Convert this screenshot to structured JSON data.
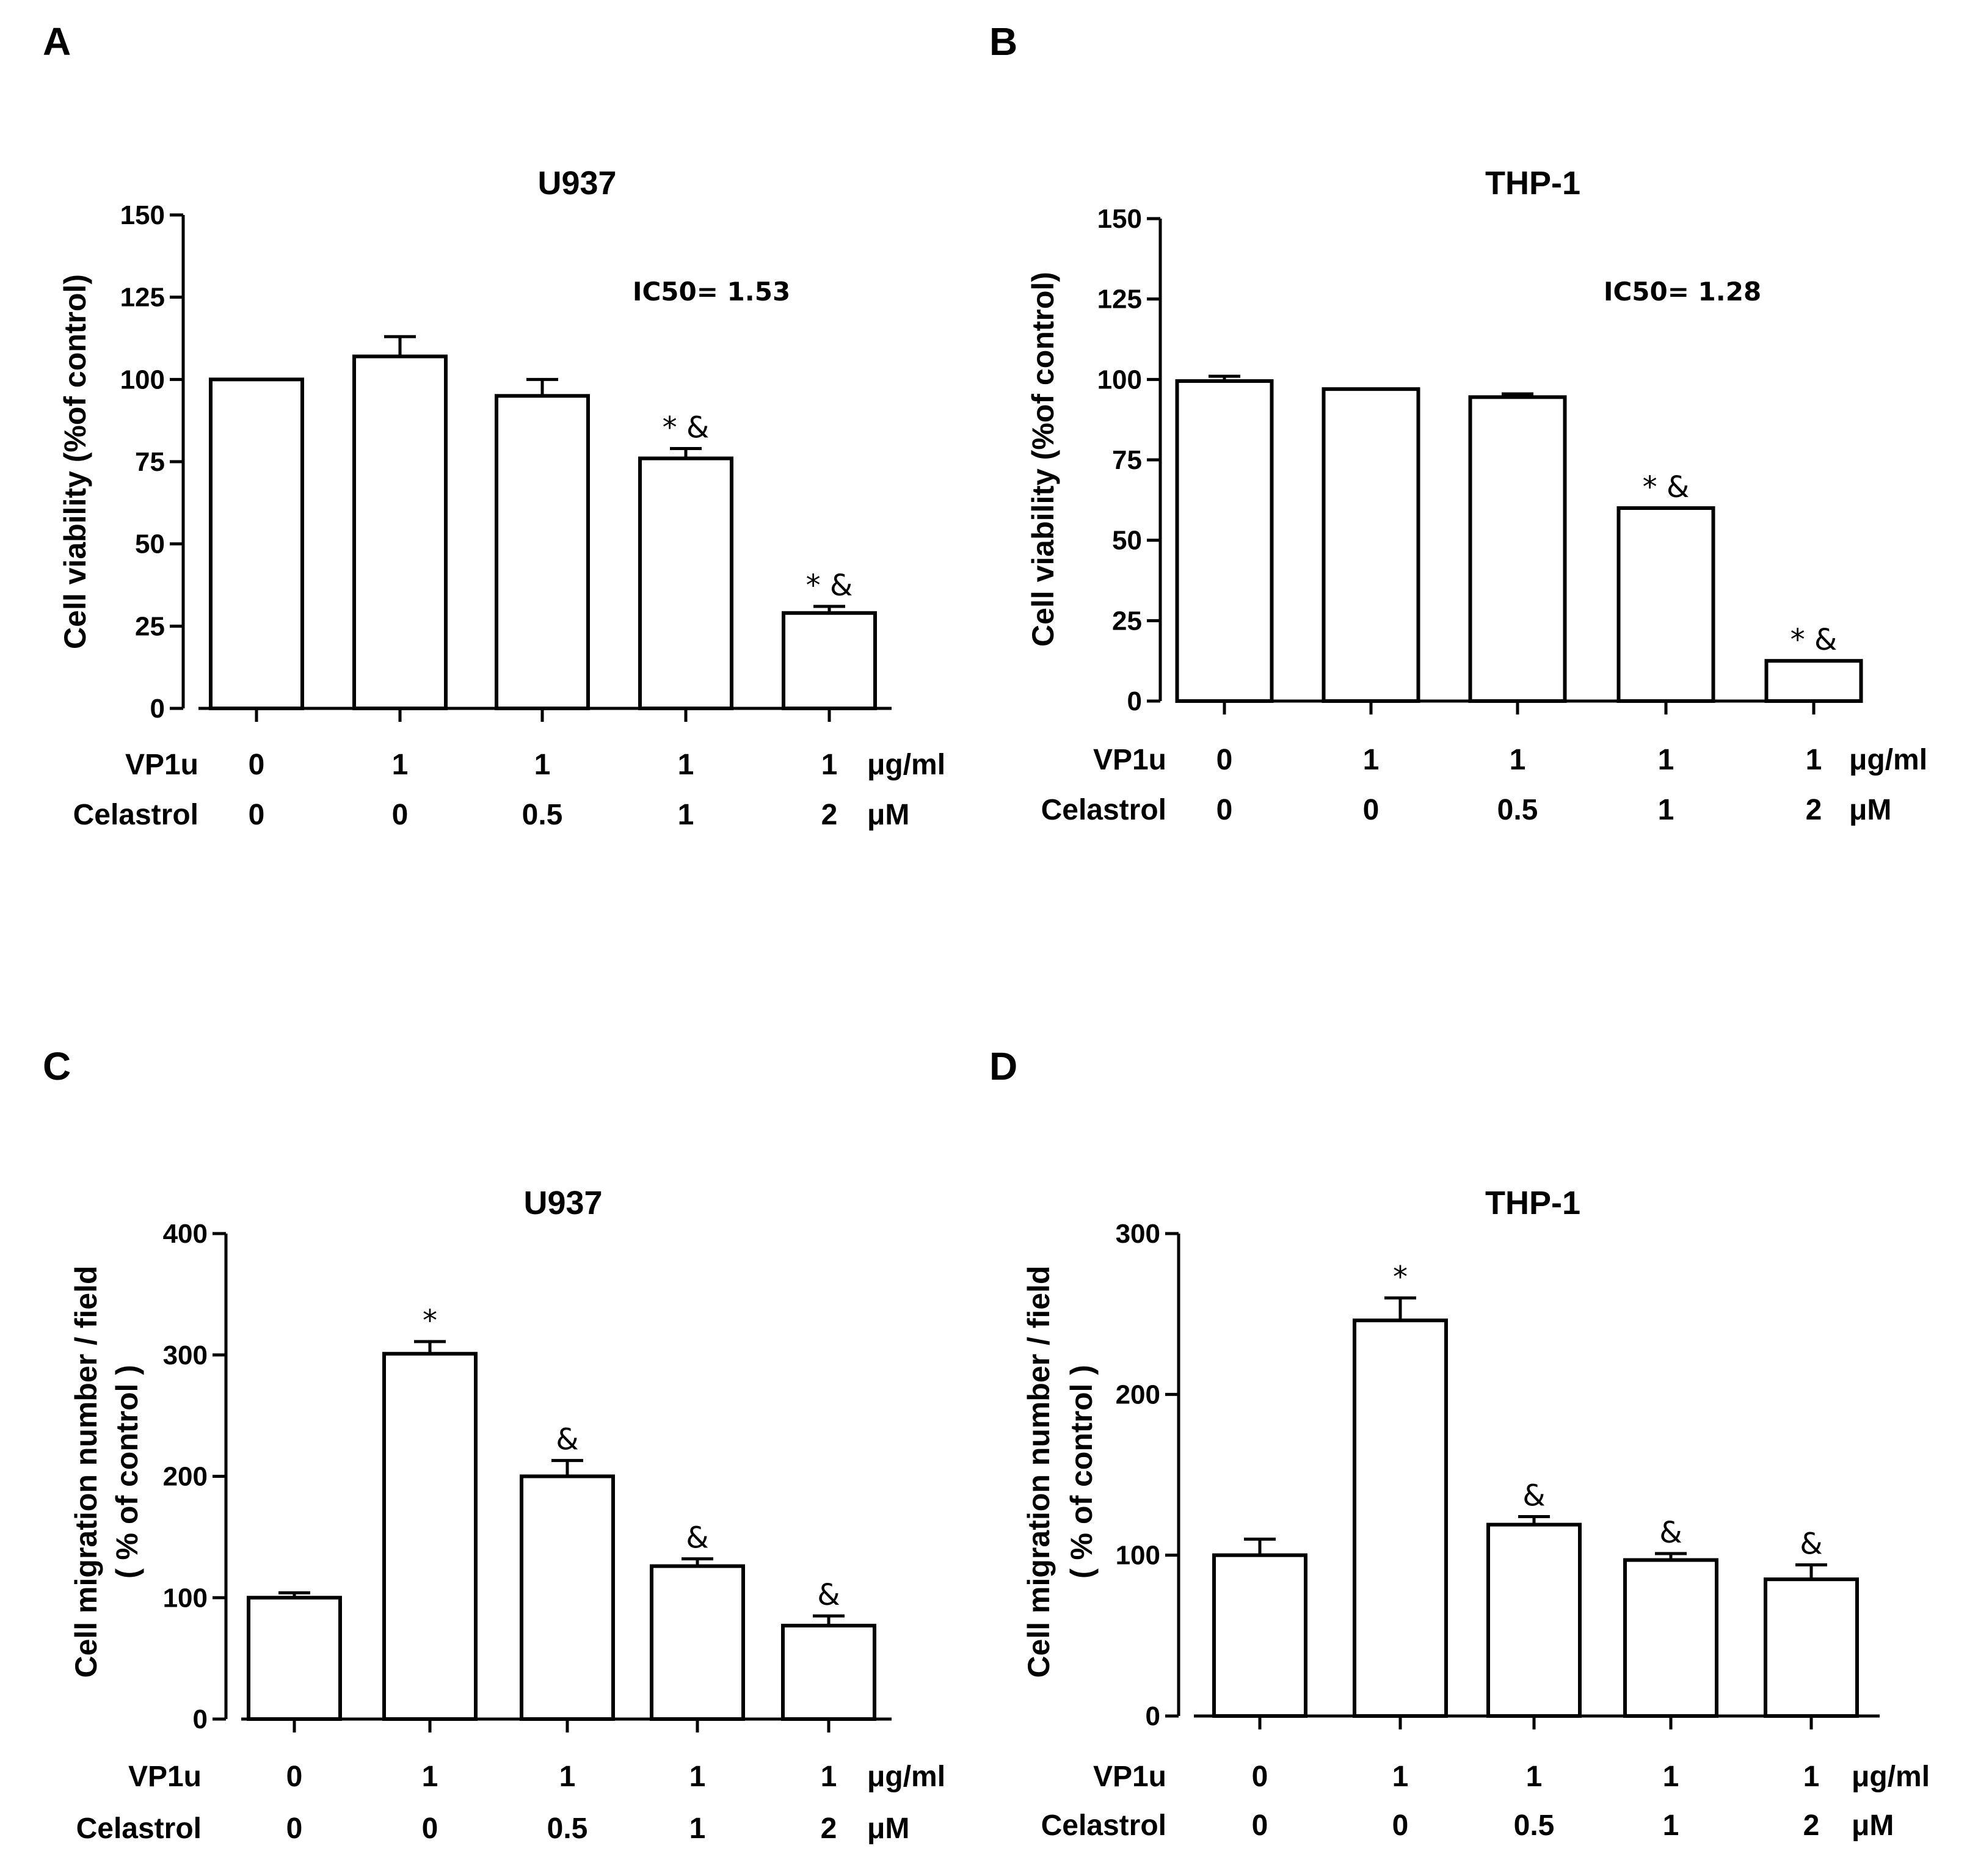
{
  "panels": [
    {
      "letter": "A",
      "title": "U937",
      "ylabel": [
        "Cell viability (%of control)"
      ],
      "ylim": [
        0,
        150
      ],
      "yticks": [
        0,
        25,
        50,
        75,
        100,
        125,
        150
      ],
      "annotation": "IC50= 1.53",
      "row1_label": "VP1u",
      "row1_values": [
        "0",
        "1",
        "1",
        "1",
        "1"
      ],
      "row1_unit": "μg/ml",
      "row2_label": "Celastrol",
      "row2_values": [
        "0",
        "0",
        "0.5",
        "1",
        "2"
      ],
      "row2_unit": "μM"
    },
    {
      "letter": "B",
      "title": "THP-1",
      "ylabel": [
        "Cell viability (%of control)"
      ],
      "ylim": [
        0,
        150
      ],
      "yticks": [
        0,
        25,
        50,
        75,
        100,
        125,
        150
      ],
      "annotation": "IC50= 1.28",
      "row1_label": "VP1u",
      "row1_values": [
        "0",
        "1",
        "1",
        "1",
        "1"
      ],
      "row1_unit": "μg/ml",
      "row2_label": "Celastrol",
      "row2_values": [
        "0",
        "0",
        "0.5",
        "1",
        "2"
      ],
      "row2_unit": "μM"
    },
    {
      "letter": "C",
      "title": "U937",
      "ylabel": [
        "Cell migration number / field",
        "( % of control )"
      ],
      "ylim": [
        0,
        400
      ],
      "yticks": [
        0,
        100,
        200,
        300,
        400
      ],
      "annotation": "",
      "row1_label": "VP1u",
      "row1_values": [
        "0",
        "1",
        "1",
        "1",
        "1"
      ],
      "row1_unit": "μg/ml",
      "row2_label": "Celastrol",
      "row2_values": [
        "0",
        "0",
        "0.5",
        "1",
        "2"
      ],
      "row2_unit": "μM"
    },
    {
      "letter": "D",
      "title": "THP-1",
      "ylabel": [
        "Cell migration number / field",
        "( % of control )"
      ],
      "ylim": [
        0,
        300
      ],
      "yticks": [
        0,
        100,
        200,
        300
      ],
      "annotation": "",
      "row1_label": "VP1u",
      "row1_values": [
        "0",
        "1",
        "1",
        "1",
        "1"
      ],
      "row1_unit": "μg/ml",
      "row2_label": "Celastrol",
      "row2_values": [
        "0",
        "0",
        "0.5",
        "1",
        "2"
      ],
      "row2_unit": "μM"
    }
  ],
  "chart_data": [
    {
      "type": "bar",
      "title": "U937",
      "ylabel": "Cell viability (%of control)",
      "ylim": [
        0,
        150
      ],
      "values": [
        100,
        107,
        95,
        76,
        29
      ],
      "errors": [
        0,
        6,
        5,
        3,
        2
      ],
      "significance": [
        "",
        "",
        "",
        "*&",
        "*&"
      ]
    },
    {
      "type": "bar",
      "title": "THP-1",
      "ylabel": "Cell viability (%of control)",
      "ylim": [
        0,
        150
      ],
      "values": [
        99.5,
        97,
        94.5,
        60,
        12.5
      ],
      "errors": [
        1.5,
        0,
        1,
        0,
        0
      ],
      "significance": [
        "",
        "",
        "",
        "*&",
        "*&"
      ]
    },
    {
      "type": "bar",
      "title": "U937",
      "ylabel": "Cell migration number / field ( % of control )",
      "ylim": [
        0,
        400
      ],
      "values": [
        100,
        301,
        200,
        126,
        77
      ],
      "errors": [
        4,
        10,
        13,
        6,
        8
      ],
      "significance": [
        "",
        "*",
        "&",
        "&",
        "&"
      ]
    },
    {
      "type": "bar",
      "title": "THP-1",
      "ylabel": "Cell migration number / field ( % of control )",
      "ylim": [
        0,
        300
      ],
      "values": [
        100,
        246,
        119,
        97,
        85
      ],
      "errors": [
        10,
        14,
        5,
        4,
        9
      ],
      "significance": [
        "",
        "*",
        "&",
        "&",
        "&"
      ]
    }
  ]
}
